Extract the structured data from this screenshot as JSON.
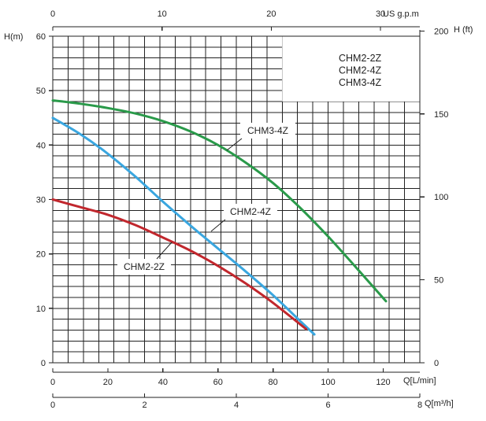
{
  "chart_data": {
    "type": "line",
    "axes": {
      "top": {
        "label": "US  g.p.m",
        "ticks": [
          "0",
          "10",
          "20",
          "30"
        ],
        "range": [
          0,
          33.6
        ]
      },
      "left": {
        "label": "H(m)",
        "ticks": [
          "0",
          "10",
          "20",
          "30",
          "40",
          "50",
          "60"
        ],
        "range": [
          0,
          60
        ]
      },
      "right": {
        "label": "H  (ft)",
        "ticks": [
          "0",
          "50",
          "100",
          "150",
          "200"
        ],
        "range": [
          0,
          196.85
        ]
      },
      "bottom1": {
        "label": "Q[L/min]",
        "ticks": [
          "0",
          "20",
          "40",
          "60",
          "80",
          "100",
          "120"
        ],
        "range": [
          0,
          133.3
        ]
      },
      "bottom2": {
        "label": "Q[m³/h]",
        "ticks": [
          "0",
          "2",
          "4",
          "6",
          "8"
        ],
        "range": [
          0,
          8
        ]
      }
    },
    "legend": {
      "entries": [
        "CHM2-2Z",
        "CHM2-4Z",
        "CHM3-4Z"
      ],
      "placement": "top-right"
    },
    "series": [
      {
        "name": "CHM3-4Z",
        "color": "#2a9a4a",
        "label_text": "CHM3-4Z",
        "x": [
          0,
          10,
          20,
          30,
          40,
          50,
          60,
          70,
          80,
          90,
          100,
          110,
          121
        ],
        "y": [
          48.2,
          47.6,
          46.8,
          45.8,
          44.4,
          42.5,
          40.0,
          36.8,
          33.0,
          28.4,
          23.2,
          17.6,
          11.3
        ]
      },
      {
        "name": "CHM2-4Z",
        "color": "#3aa6df",
        "label_text": "CHM2-4Z",
        "x": [
          0,
          10,
          20,
          30,
          40,
          50,
          60,
          70,
          80,
          90,
          95
        ],
        "y": [
          45.0,
          42.0,
          38.4,
          34.2,
          29.6,
          25.2,
          21.0,
          16.8,
          12.4,
          7.6,
          5.2
        ]
      },
      {
        "name": "CHM2-2Z",
        "color": "#c1272d",
        "label_text": "CHM2-2Z",
        "x": [
          0,
          10,
          20,
          30,
          40,
          50,
          60,
          70,
          80,
          92
        ],
        "y": [
          30.0,
          28.6,
          27.2,
          25.3,
          23.0,
          20.6,
          17.8,
          14.6,
          11.0,
          6.2
        ]
      }
    ]
  }
}
